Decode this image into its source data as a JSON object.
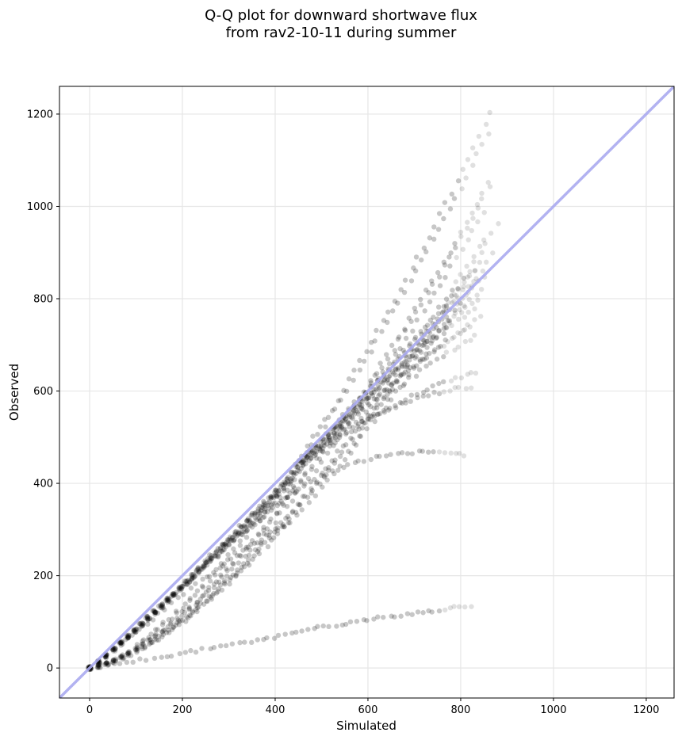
{
  "chart_data": {
    "type": "scatter",
    "title": "Q-Q plot for downward shortwave flux",
    "subtitle": "from rav2-10-11 during summer",
    "xlabel": "Simulated",
    "ylabel": "Observed",
    "xlim": [
      -65,
      1260
    ],
    "ylim": [
      -65,
      1260
    ],
    "xticks": [
      "0",
      "200",
      "400",
      "600",
      "800",
      "1000",
      "1200"
    ],
    "yticks": [
      "0",
      "200",
      "400",
      "600",
      "800",
      "1000",
      "1200"
    ],
    "grid": true,
    "reference_line": {
      "type": "identity",
      "color": "#aaaaf0"
    },
    "marker_color": "#000000",
    "curves": [
      {
        "end_x": 865,
        "end_y": 1200,
        "bow": 80
      },
      {
        "end_x": 860,
        "end_y": 1160,
        "bow": 70
      },
      {
        "end_x": 860,
        "end_y": 1050,
        "bow": 60
      },
      {
        "end_x": 860,
        "end_y": 1040,
        "bow": 50
      },
      {
        "end_x": 850,
        "end_y": 990,
        "bow": 40
      },
      {
        "end_x": 880,
        "end_y": 960,
        "bow": 30
      },
      {
        "end_x": 850,
        "end_y": 930,
        "bow": 20
      },
      {
        "end_x": 870,
        "end_y": 900,
        "bow": 10
      },
      {
        "end_x": 840,
        "end_y": 880,
        "bow": 5
      },
      {
        "end_x": 830,
        "end_y": 860,
        "bow": 0
      },
      {
        "end_x": 850,
        "end_y": 850,
        "bow": -10
      },
      {
        "end_x": 830,
        "end_y": 840,
        "bow": -20
      },
      {
        "end_x": 845,
        "end_y": 820,
        "bow": -30
      },
      {
        "end_x": 835,
        "end_y": 800,
        "bow": -40
      },
      {
        "end_x": 830,
        "end_y": 780,
        "bow": -50
      },
      {
        "end_x": 840,
        "end_y": 760,
        "bow": -55
      },
      {
        "end_x": 820,
        "end_y": 740,
        "bow": -60
      },
      {
        "end_x": 830,
        "end_y": 720,
        "bow": -65
      },
      {
        "end_x": 835,
        "end_y": 640,
        "bow": -110
      },
      {
        "end_x": 820,
        "end_y": 610,
        "bow": -130
      },
      {
        "end_x": 810,
        "end_y": 460,
        "bow": -150
      },
      {
        "end_x": 820,
        "end_y": 135,
        "bow": -10
      }
    ]
  }
}
